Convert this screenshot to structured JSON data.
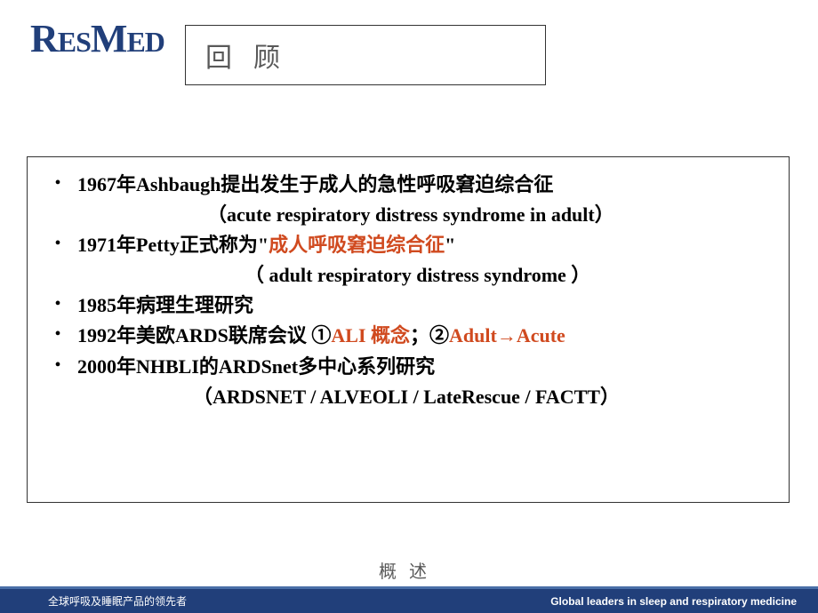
{
  "logo": {
    "part1": "R",
    "part2": "ES",
    "part3": "M",
    "part4": "ED"
  },
  "title": "回顾",
  "bullets": [
    {
      "line": [
        {
          "text": "1967年Ashbaugh提出发生于成人的急性呼吸窘迫综合征",
          "highlight": false
        }
      ],
      "sub": {
        "text": "（acute respiratory distress syndrome in adult）",
        "indentClass": "sub-indent-1"
      }
    },
    {
      "line": [
        {
          "text": "1971年Petty正式称为\"",
          "highlight": false
        },
        {
          "text": "成人呼吸窘迫综合征",
          "highlight": true
        },
        {
          "text": "\"",
          "highlight": false
        }
      ],
      "sub": {
        "text": "（ adult respiratory distress syndrome ）",
        "indentClass": "sub-indent-2"
      }
    },
    {
      "line": [
        {
          "text": "1985年病理生理研究",
          "highlight": false
        }
      ]
    },
    {
      "line": [
        {
          "text": "1992年美欧ARDS联席会议 ①",
          "highlight": false
        },
        {
          "text": "ALI 概念",
          "highlight": true
        },
        {
          "text": "；②",
          "highlight": false
        },
        {
          "text": "Adult→Acute",
          "highlight": true
        }
      ]
    },
    {
      "line": [
        {
          "text": "2000年NHBLI的ARDSnet多中心系列研究",
          "highlight": false
        }
      ],
      "sub": {
        "text": "（ARDSNET / ALVEOLI  / LateRescue  / FACTT）",
        "indentClass": "sub-indent-3"
      }
    }
  ],
  "bottomLabel": "概述",
  "footer": {
    "left": "全球呼吸及睡眠产品的领先者",
    "right": "Global leaders in sleep and respiratory medicine"
  },
  "colors": {
    "brand": "#213f7a",
    "highlight": "#d04a1f",
    "titleGray": "#595959"
  }
}
